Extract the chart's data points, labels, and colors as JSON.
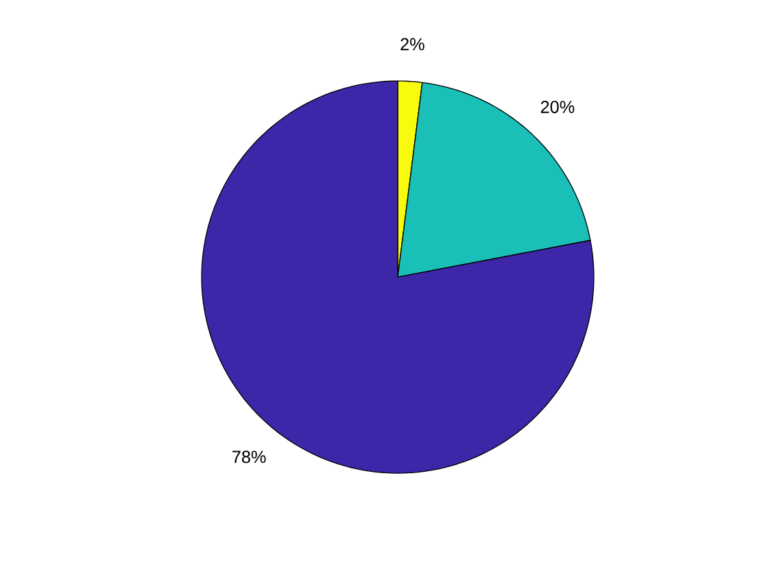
{
  "chart_data": {
    "type": "pie",
    "categories": [
      null,
      null,
      null
    ],
    "values": [
      2,
      20,
      78
    ],
    "colors": [
      "#f9fb0e",
      "#1abfb7",
      "#3e26a8"
    ],
    "value_labels": [
      "2%",
      "20%",
      "78%"
    ]
  }
}
